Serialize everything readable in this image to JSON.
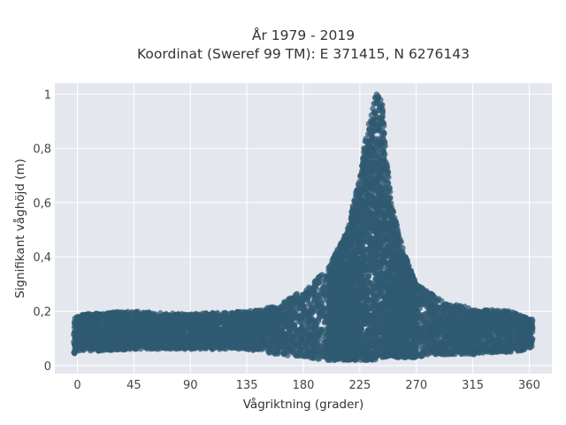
{
  "chart_data": {
    "type": "scatter",
    "title_line1": "År 1979 - 2019",
    "title_line2": "Koordinat (Sweref 99 TM): E 371415, N 6276143",
    "xlabel": "Vågriktning (grader)",
    "ylabel": "Signifikant våghöjd (m)",
    "xlim": [
      -18,
      378
    ],
    "ylim": [
      -0.03,
      1.04
    ],
    "xticks": [
      0,
      45,
      90,
      135,
      180,
      225,
      270,
      315,
      360
    ],
    "xtick_labels": [
      "0",
      "45",
      "90",
      "135",
      "180",
      "225",
      "270",
      "315",
      "360"
    ],
    "yticks": [
      0,
      0.2,
      0.4,
      0.6,
      0.8,
      1
    ],
    "ytick_labels": [
      "0",
      "0,2",
      "0,4",
      "0,6",
      "0,8",
      "1"
    ],
    "grid": true,
    "marker_color": "#2f5a72",
    "plot_background": "#e5e7ef",
    "density_envelope": {
      "x": [
        -3,
        0,
        45,
        90,
        135,
        160,
        180,
        200,
        215,
        225,
        230,
        235,
        238,
        240,
        243,
        245,
        250,
        260,
        270,
        290,
        315,
        345,
        363
      ],
      "y_low": [
        0.04,
        0.05,
        0.06,
        0.06,
        0.06,
        0.04,
        0.03,
        0.02,
        0.02,
        0.02,
        0.02,
        0.02,
        0.02,
        0.03,
        0.03,
        0.03,
        0.03,
        0.03,
        0.03,
        0.04,
        0.04,
        0.05,
        0.06
      ],
      "y_high": [
        0.19,
        0.19,
        0.2,
        0.19,
        0.2,
        0.22,
        0.28,
        0.36,
        0.5,
        0.7,
        0.85,
        0.96,
        1.01,
        1.01,
        0.96,
        0.84,
        0.6,
        0.42,
        0.3,
        0.24,
        0.21,
        0.2,
        0.17
      ]
    }
  }
}
